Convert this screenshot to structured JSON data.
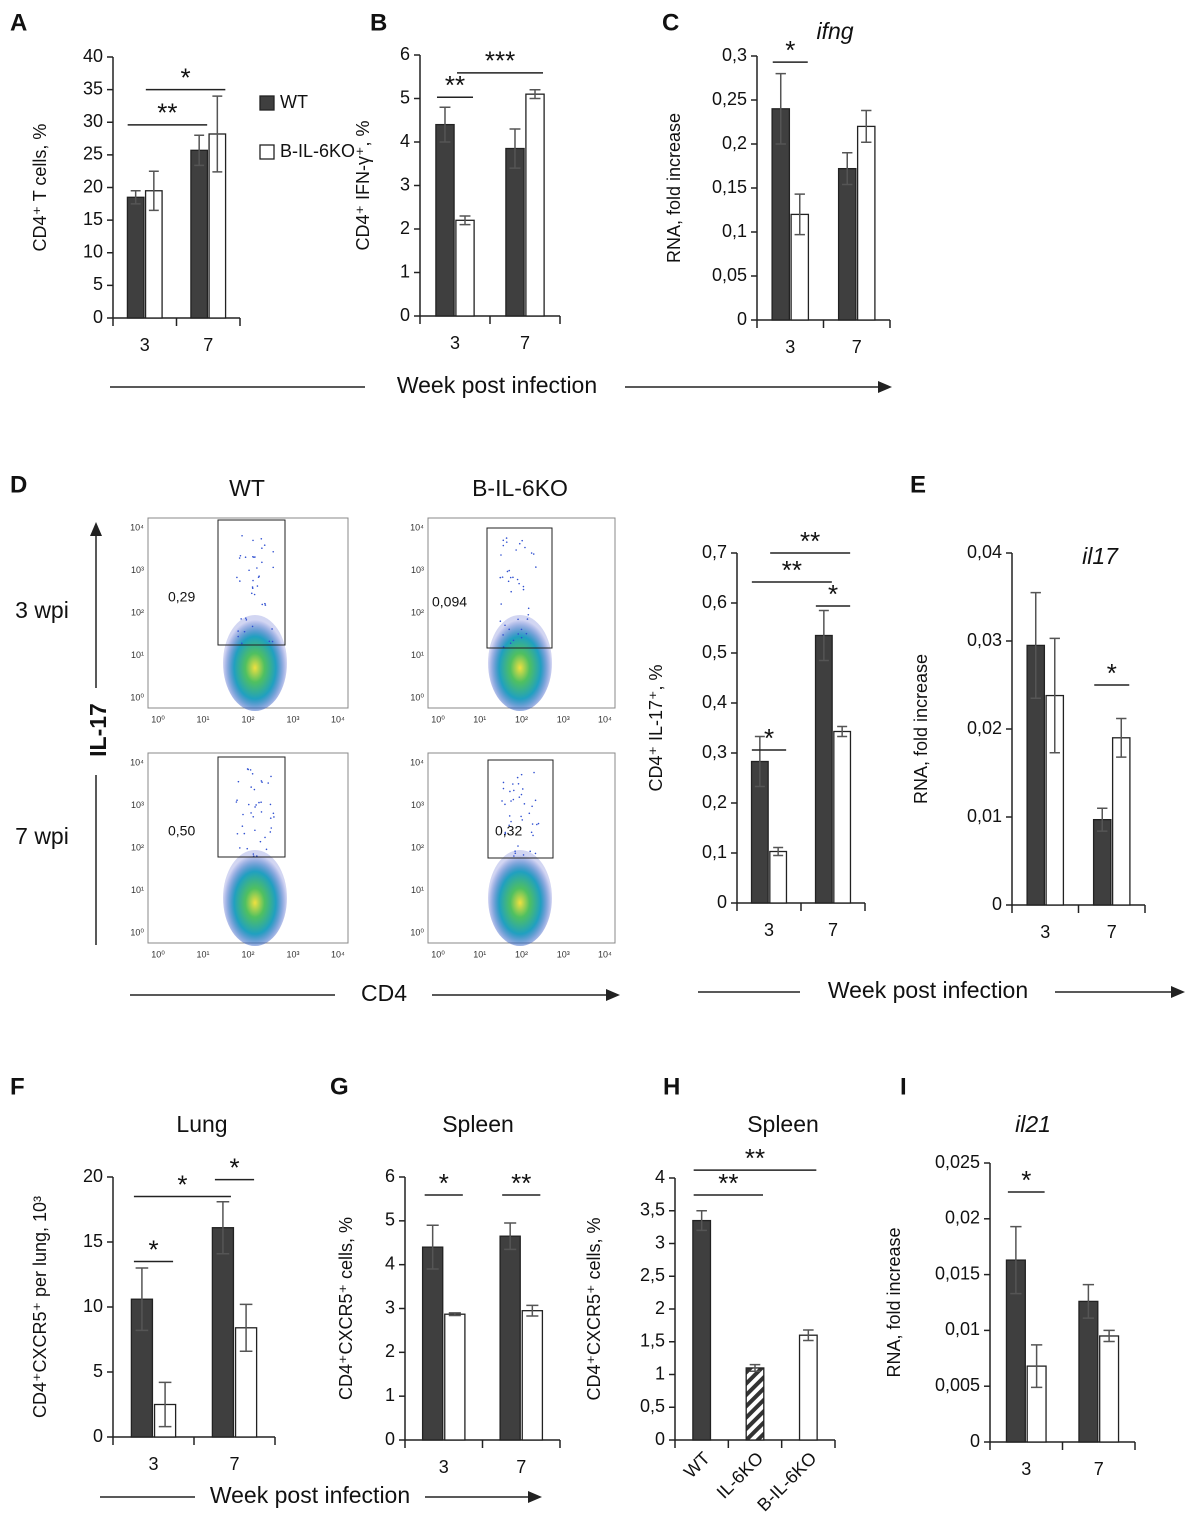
{
  "panel_labels": [
    "A",
    "B",
    "C",
    "D",
    "E",
    "F",
    "G",
    "H",
    "I"
  ],
  "week_label": "Week post infection",
  "flow": {
    "columns": [
      "WT",
      "B-IL-6KO"
    ],
    "rows": [
      "3 wpi",
      "7 wpi"
    ],
    "gates": [
      [
        "0,29",
        "0,094"
      ],
      [
        "0,50",
        "0,32"
      ]
    ],
    "ticks": [
      "10⁰",
      "10¹",
      "10²",
      "10³",
      "10⁴"
    ],
    "y_axis": "IL-17",
    "x_axis": "CD4"
  },
  "chart_data": [
    {
      "type": "bar",
      "ylabel": "CD4⁺ T cells, %",
      "categories": [
        "3",
        "7"
      ],
      "ylim": [
        0,
        40
      ],
      "yticks": [
        0,
        5,
        10,
        15,
        20,
        25,
        30,
        35,
        40
      ],
      "series": [
        {
          "name": "WT",
          "color": "#3f3f3f",
          "values": [
            18.5,
            25.7
          ],
          "errors": [
            1,
            2.3
          ]
        },
        {
          "name": "B-IL-6KO",
          "color": "#ffffff",
          "values": [
            19.5,
            28.2
          ],
          "errors": [
            3,
            5.8
          ]
        }
      ],
      "annotations": [
        {
          "text": "**",
          "y": 29.6
        },
        {
          "text": "*",
          "y": 35
        }
      ]
    },
    {
      "type": "bar",
      "ylabel": "CD4⁺ IFN-γ⁺, %",
      "categories": [
        "3",
        "7"
      ],
      "ylim": [
        0,
        6
      ],
      "yticks": [
        0,
        1,
        2,
        3,
        4,
        5,
        6
      ],
      "series": [
        {
          "color": "#3f3f3f",
          "values": [
            4.4,
            3.85
          ],
          "errors": [
            0.4,
            0.45
          ]
        },
        {
          "color": "#ffffff",
          "values": [
            2.2,
            5.1
          ],
          "errors": [
            0.1,
            0.1
          ]
        }
      ],
      "annotations": [
        {
          "text": "**",
          "y": 5.03
        },
        {
          "text": "***",
          "y": 5.59
        }
      ]
    },
    {
      "type": "bar",
      "title": "ifng",
      "ylabel": "RNA, fold increase",
      "categories": [
        "3",
        "7"
      ],
      "ylim": [
        0,
        0.3
      ],
      "yticks": [
        0,
        {
          "value": 0.05,
          "label": "0,05"
        },
        {
          "value": 0.1,
          "label": "0,1"
        },
        {
          "value": 0.15,
          "label": "0,15"
        },
        {
          "value": 0.2,
          "label": "0,2"
        },
        {
          "value": 0.25,
          "label": "0,25"
        },
        {
          "value": 0.3,
          "label": "0,3"
        }
      ],
      "series": [
        {
          "color": "#3f3f3f",
          "values": [
            0.24,
            0.172
          ],
          "errors": [
            0.04,
            0.018
          ]
        },
        {
          "color": "#ffffff",
          "values": [
            0.12,
            0.22
          ],
          "errors": [
            0.023,
            0.018
          ]
        }
      ],
      "annotations": [
        {
          "text": "*",
          "y": 0.293
        }
      ]
    },
    {
      "type": "bar",
      "ylabel": "CD4⁺ IL-17⁺, %",
      "categories": [
        "3",
        "7"
      ],
      "ylim": [
        0,
        0.7
      ],
      "yticks": [
        0,
        {
          "value": 0.1,
          "label": "0,1"
        },
        {
          "value": 0.2,
          "label": "0,2"
        },
        {
          "value": 0.3,
          "label": "0,3"
        },
        {
          "value": 0.4,
          "label": "0,4"
        },
        {
          "value": 0.5,
          "label": "0,5"
        },
        {
          "value": 0.6,
          "label": "0,6"
        },
        {
          "value": 0.7,
          "label": "0,7"
        }
      ],
      "series": [
        {
          "color": "#3f3f3f",
          "values": [
            0.283,
            0.535
          ],
          "errors": [
            0.05,
            0.05
          ]
        },
        {
          "color": "#ffffff",
          "values": [
            0.103,
            0.343
          ],
          "errors": [
            0.008,
            0.01
          ]
        }
      ],
      "annotations": [
        {
          "text": "*",
          "y": 0.306
        },
        {
          "text": "**",
          "y": 0.642
        },
        {
          "text": "**",
          "y": 0.7
        },
        {
          "text": "*",
          "y": 0.594
        }
      ]
    },
    {
      "type": "bar",
      "title": "il17",
      "ylabel": "RNA, fold increase",
      "categories": [
        "3",
        "7"
      ],
      "ylim": [
        0,
        0.04
      ],
      "yticks": [
        0,
        {
          "value": 0.01,
          "label": "0,01"
        },
        {
          "value": 0.02,
          "label": "0,02"
        },
        {
          "value": 0.03,
          "label": "0,03"
        },
        {
          "value": 0.04,
          "label": "0,04"
        }
      ],
      "series": [
        {
          "color": "#3f3f3f",
          "values": [
            0.0295,
            0.0097
          ],
          "errors": [
            0.006,
            0.0013
          ]
        },
        {
          "color": "#ffffff",
          "values": [
            0.0238,
            0.019
          ],
          "errors": [
            0.0065,
            0.0022
          ]
        }
      ],
      "annotations": [
        {
          "text": "*",
          "y": 0.025
        }
      ]
    },
    {
      "type": "bar",
      "title": "Lung",
      "ylabel": "CD4⁺CXCR5⁺ per lung, 10³",
      "categories": [
        "3",
        "7"
      ],
      "ylim": [
        0,
        20
      ],
      "yticks": [
        0,
        5,
        10,
        15,
        20
      ],
      "series": [
        {
          "color": "#3f3f3f",
          "values": [
            10.6,
            16.1
          ],
          "errors": [
            2.4,
            2
          ]
        },
        {
          "color": "#ffffff",
          "values": [
            2.5,
            8.4
          ],
          "errors": [
            1.7,
            1.8
          ]
        }
      ],
      "annotations": [
        {
          "text": "*",
          "y": 13.5
        },
        {
          "text": "*",
          "y": 18.5
        },
        {
          "text": "*",
          "y": 19.8
        }
      ]
    },
    {
      "type": "bar",
      "title": "Spleen",
      "ylabel": "CD4⁺CXCR5⁺ cells, %",
      "categories": [
        "3",
        "7"
      ],
      "ylim": [
        0,
        6
      ],
      "yticks": [
        0,
        1,
        2,
        3,
        4,
        5,
        6
      ],
      "series": [
        {
          "color": "#3f3f3f",
          "values": [
            4.4,
            4.65
          ],
          "errors": [
            0.5,
            0.3
          ]
        },
        {
          "color": "#ffffff",
          "values": [
            2.87,
            2.95
          ],
          "errors": [
            0.03,
            0.12
          ]
        }
      ],
      "annotations": [
        {
          "text": "*",
          "y": 5.59
        },
        {
          "text": "**",
          "y": 5.59
        }
      ]
    },
    {
      "type": "bar",
      "title": "Spleen",
      "ylabel": "CD4⁺CXCR5⁺ cells, %",
      "categories": [
        "WT",
        "IL-6KO",
        "B-IL-6KO"
      ],
      "ylim": [
        0,
        4
      ],
      "yticks": [
        0,
        {
          "value": 0.5,
          "label": "0,5"
        },
        1,
        {
          "value": 1.5,
          "label": "1,5"
        },
        2,
        {
          "value": 2.5,
          "label": "2,5"
        },
        3,
        {
          "value": 3.5,
          "label": "3,5"
        },
        4
      ],
      "series": [
        {
          "colors": [
            "#3f3f3f",
            "hatch",
            "#ffffff"
          ],
          "values": [
            3.35,
            1.1,
            1.6
          ],
          "errors": [
            0.15,
            0.05,
            0.08
          ]
        }
      ],
      "annotations": [
        {
          "text": "**",
          "y": 3.74
        },
        {
          "text": "**",
          "y": 4.12
        }
      ]
    },
    {
      "type": "bar",
      "title": "il21",
      "ylabel": "RNA, fold increase",
      "categories": [
        "3",
        "7"
      ],
      "ylim": [
        0,
        0.025
      ],
      "yticks": [
        0,
        {
          "value": 0.005,
          "label": "0,005"
        },
        {
          "value": 0.01,
          "label": "0,01"
        },
        {
          "value": 0.015,
          "label": "0,015"
        },
        {
          "value": 0.02,
          "label": "0,02"
        },
        {
          "value": 0.025,
          "label": "0,025"
        }
      ],
      "series": [
        {
          "color": "#3f3f3f",
          "values": [
            0.0163,
            0.0126
          ],
          "errors": [
            0.003,
            0.0015
          ]
        },
        {
          "color": "#ffffff",
          "values": [
            0.0068,
            0.0095
          ],
          "errors": [
            0.0019,
            0.0005
          ]
        }
      ],
      "annotations": [
        {
          "text": "*",
          "y": 0.0224
        }
      ]
    }
  ]
}
